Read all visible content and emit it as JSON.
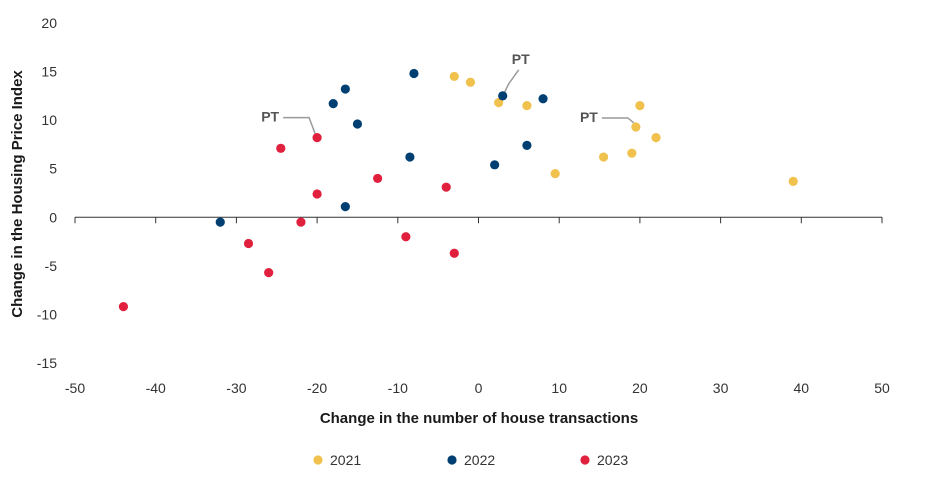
{
  "chart_data": {
    "type": "scatter",
    "xlabel": "Change in the number of house transactions",
    "ylabel": "Change in the Housing Price Index",
    "xlim": [
      -50,
      50
    ],
    "ylim": [
      -15,
      20
    ],
    "xticks": [
      -50,
      -40,
      -30,
      -20,
      -10,
      0,
      10,
      20,
      30,
      40,
      50
    ],
    "yticks": [
      -15,
      -10,
      -5,
      0,
      5,
      10,
      15,
      20
    ],
    "grid": false,
    "legend": "bottom",
    "series": [
      {
        "name": "2021",
        "color": "#f1c14e",
        "points": [
          [
            -3,
            14.5
          ],
          [
            -1,
            13.9
          ],
          [
            2.5,
            11.8
          ],
          [
            6,
            11.5
          ],
          [
            9.5,
            4.5
          ],
          [
            15.5,
            6.2
          ],
          [
            19,
            6.6
          ],
          [
            19.5,
            9.3
          ],
          [
            20,
            11.5
          ],
          [
            22,
            8.2
          ],
          [
            39,
            3.7
          ]
        ]
      },
      {
        "name": "2022",
        "color": "#003f72",
        "points": [
          [
            -32,
            -0.5
          ],
          [
            -18,
            11.7
          ],
          [
            -16.5,
            13.2
          ],
          [
            -16.5,
            1.1
          ],
          [
            -15,
            9.6
          ],
          [
            -8.5,
            6.2
          ],
          [
            -8,
            14.8
          ],
          [
            2,
            5.4
          ],
          [
            3,
            12.5
          ],
          [
            6,
            7.4
          ],
          [
            8,
            12.2
          ]
        ]
      },
      {
        "name": "2023",
        "color": "#e0203c",
        "points": [
          [
            -44,
            -9.2
          ],
          [
            -28.5,
            -2.7
          ],
          [
            -26,
            -5.7
          ],
          [
            -24.5,
            7.1
          ],
          [
            -22,
            -0.5
          ],
          [
            -20,
            8.2
          ],
          [
            -20,
            2.4
          ],
          [
            -12.5,
            4.0
          ],
          [
            -9,
            -2.0
          ],
          [
            -4,
            3.1
          ],
          [
            -3,
            -3.7
          ]
        ]
      }
    ],
    "annotations": [
      {
        "text": "PT",
        "target": [
          -20,
          8.2
        ]
      },
      {
        "text": "PT",
        "target": [
          3,
          12.5
        ]
      },
      {
        "text": "PT",
        "target": [
          19.5,
          9.3
        ]
      }
    ]
  }
}
